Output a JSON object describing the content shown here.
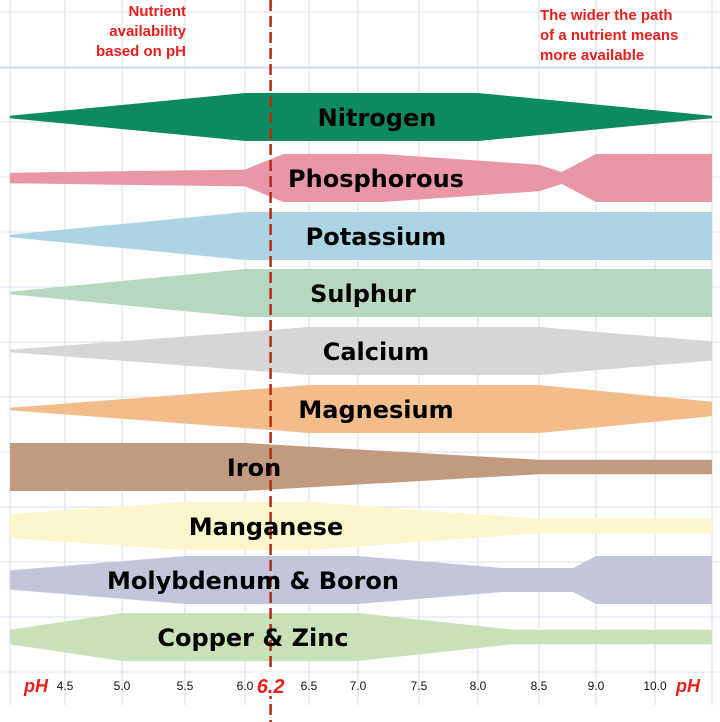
{
  "chart_data": {
    "type": "area",
    "title": "",
    "annotations": {
      "left": "Nutrient\navailability\nbased on pH",
      "right": "The wider the path\nof a nutrient means\nmore available"
    },
    "x_axis": {
      "label": "pH",
      "ticks": [
        4.5,
        5.0,
        5.5,
        6.0,
        6.5,
        7.0,
        7.5,
        8.0,
        8.5,
        9.0,
        10.0
      ],
      "tick_labels": [
        "4.5",
        "5.0",
        "5.5",
        "6.0",
        "6.5",
        "7.0",
        "7.5",
        "8.0",
        "8.5",
        "9.0",
        "10.0"
      ],
      "range": [
        4.0,
        10.5
      ]
    },
    "marker": {
      "value": 6.2,
      "label": "6.2",
      "color": "#b22a1a",
      "style": "dashed"
    },
    "grid": true,
    "series": [
      {
        "name": "Nitrogen",
        "color": "#0d8a5f",
        "points": [
          [
            4.0,
            0.05
          ],
          [
            6.0,
            1.0
          ],
          [
            8.0,
            1.0
          ],
          [
            10.5,
            0.05
          ]
        ]
      },
      {
        "name": "Phosphorous",
        "color": "#e996a9",
        "points": [
          [
            4.0,
            0.22
          ],
          [
            6.0,
            0.35
          ],
          [
            6.3,
            1.0
          ],
          [
            7.2,
            1.0
          ],
          [
            8.5,
            0.55
          ],
          [
            8.7,
            0.25
          ],
          [
            9.0,
            1.0
          ],
          [
            10.5,
            1.0
          ]
        ]
      },
      {
        "name": "Potassium",
        "color": "#acd5e4",
        "points": [
          [
            4.0,
            0.05
          ],
          [
            6.0,
            1.0
          ],
          [
            10.5,
            1.0
          ]
        ]
      },
      {
        "name": "Sulphur",
        "color": "#b7d8be",
        "points": [
          [
            4.0,
            0.05
          ],
          [
            6.0,
            1.0
          ],
          [
            10.5,
            1.0
          ]
        ]
      },
      {
        "name": "Calcium",
        "color": "#d6d6d6",
        "points": [
          [
            4.0,
            0.05
          ],
          [
            6.5,
            1.0
          ],
          [
            8.5,
            1.0
          ],
          [
            10.5,
            0.4
          ]
        ]
      },
      {
        "name": "Magnesium",
        "color": "#f2bc8b",
        "points": [
          [
            4.0,
            0.05
          ],
          [
            6.5,
            1.0
          ],
          [
            8.5,
            1.0
          ],
          [
            10.5,
            0.3
          ]
        ]
      },
      {
        "name": "Iron",
        "color": "#c29a80",
        "points": [
          [
            4.0,
            1.0
          ],
          [
            6.0,
            1.0
          ],
          [
            8.5,
            0.3
          ],
          [
            10.5,
            0.3
          ]
        ]
      },
      {
        "name": "Manganese",
        "color": "#fcf6cc",
        "points": [
          [
            4.0,
            0.5
          ],
          [
            5.5,
            1.0
          ],
          [
            6.5,
            1.0
          ],
          [
            8.5,
            0.3
          ],
          [
            10.5,
            0.3
          ]
        ]
      },
      {
        "name": "Molybdenum & Boron",
        "color": "#c3c6db",
        "points": [
          [
            4.0,
            0.4
          ],
          [
            5.5,
            1.0
          ],
          [
            7.0,
            1.0
          ],
          [
            8.2,
            0.5
          ],
          [
            8.8,
            0.5
          ],
          [
            9.0,
            1.0
          ],
          [
            10.5,
            1.0
          ]
        ]
      },
      {
        "name": "Copper & Zinc",
        "color": "#c9e1b9",
        "points": [
          [
            4.0,
            0.3
          ],
          [
            5.0,
            1.0
          ],
          [
            7.0,
            1.0
          ],
          [
            8.3,
            0.3
          ],
          [
            10.5,
            0.3
          ]
        ]
      }
    ]
  }
}
